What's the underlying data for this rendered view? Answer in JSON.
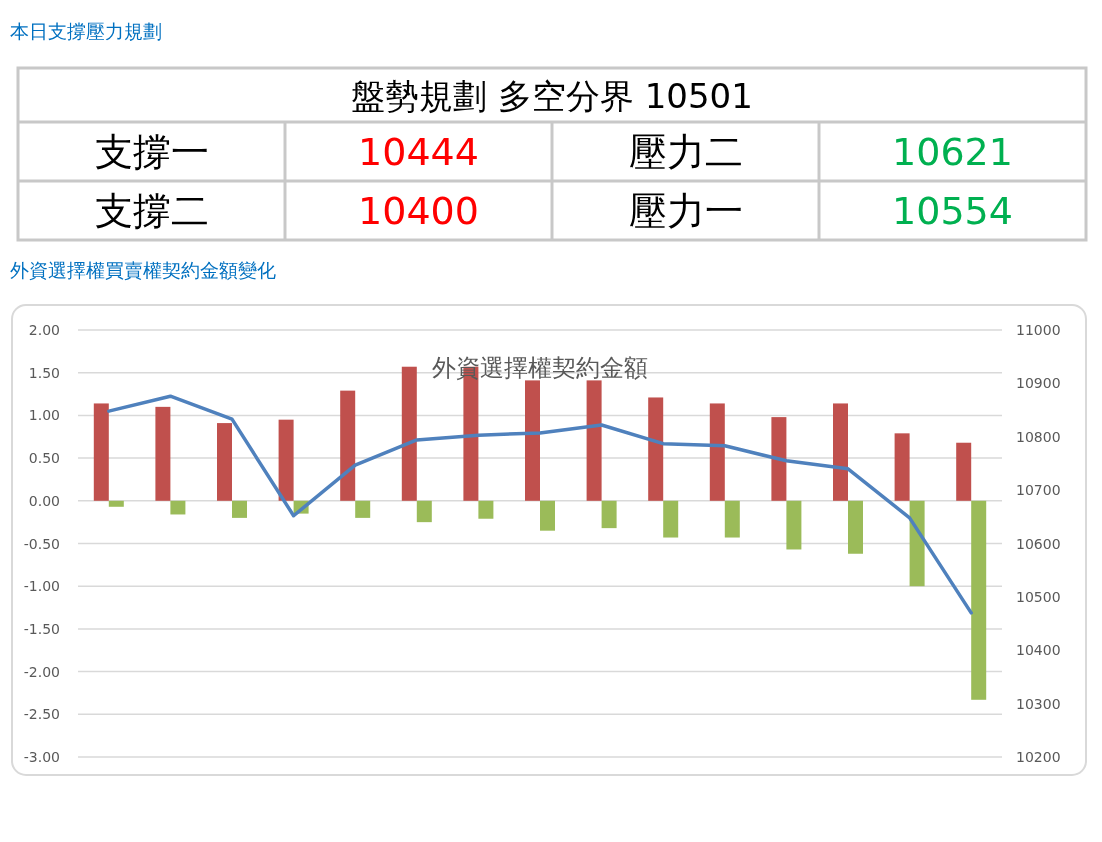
{
  "chart_data": [
    {
      "type": "other",
      "title": "本日支撐壓力規劃",
      "subtitle": "盤勢規劃 多空分界 10501",
      "categories": [
        "支撐一",
        "壓力二",
        "支撐二",
        "壓力一"
      ],
      "values": [
        10444,
        10621,
        10400,
        10554
      ],
      "colors": [
        "#ff0000",
        "#00b050",
        "#ff0000",
        "#00b050"
      ],
      "data_labels": true
    },
    {
      "type": "bar",
      "title": "外資選擇權買賣權契約金額變化",
      "subtitle": "外資選擇權契約金額",
      "categories": [
        null,
        null,
        null,
        null,
        null,
        null,
        null,
        null,
        null,
        null,
        null,
        null,
        null,
        null,
        null
      ],
      "series": [
        {
          "color": "#c0504d",
          "values": [
            1.14,
            1.1,
            0.91,
            0.95,
            1.29,
            1.57,
            1.57,
            1.41,
            1.41,
            1.21,
            1.14,
            0.98,
            1.14,
            0.79,
            0.68
          ]
        },
        {
          "color": "#9bbb59",
          "values": [
            -0.07,
            -0.16,
            -0.2,
            -0.15,
            -0.2,
            -0.25,
            -0.21,
            -0.35,
            -0.32,
            -0.43,
            -0.43,
            -0.57,
            -0.62,
            -1.0,
            -2.33
          ]
        },
        {
          "type": "line",
          "axis": "y2",
          "color": "#4f81bd",
          "values": [
            10848,
            10876,
            10833,
            10652,
            10747,
            10794,
            10803,
            10807,
            10822,
            10787,
            10783,
            10755,
            10740,
            10648,
            10470
          ]
        }
      ],
      "ylim": [
        -3,
        2
      ],
      "yticks": [
        {
          "value": 2,
          "label": "2.00"
        },
        {
          "value": 1.5,
          "label": "1.50"
        },
        {
          "value": 1,
          "label": "1.00"
        },
        {
          "value": 0.5,
          "label": "0.50"
        },
        {
          "value": 0,
          "label": "0.00"
        },
        {
          "value": -0.5,
          "label": "-0.50"
        },
        {
          "value": -1,
          "label": "-1.00"
        },
        {
          "value": -1.5,
          "label": "-1.50"
        },
        {
          "value": -2,
          "label": "-2.00"
        },
        {
          "value": -2.5,
          "label": "-2.50"
        },
        {
          "value": -3,
          "label": "-3.00"
        }
      ],
      "y2lim": [
        10200,
        11000
      ],
      "y2ticks": [
        11000,
        10900,
        10800,
        10700,
        10600,
        10500,
        10400,
        10300,
        10200
      ],
      "grid": "y",
      "marker": "none",
      "line_style": "solid"
    }
  ]
}
